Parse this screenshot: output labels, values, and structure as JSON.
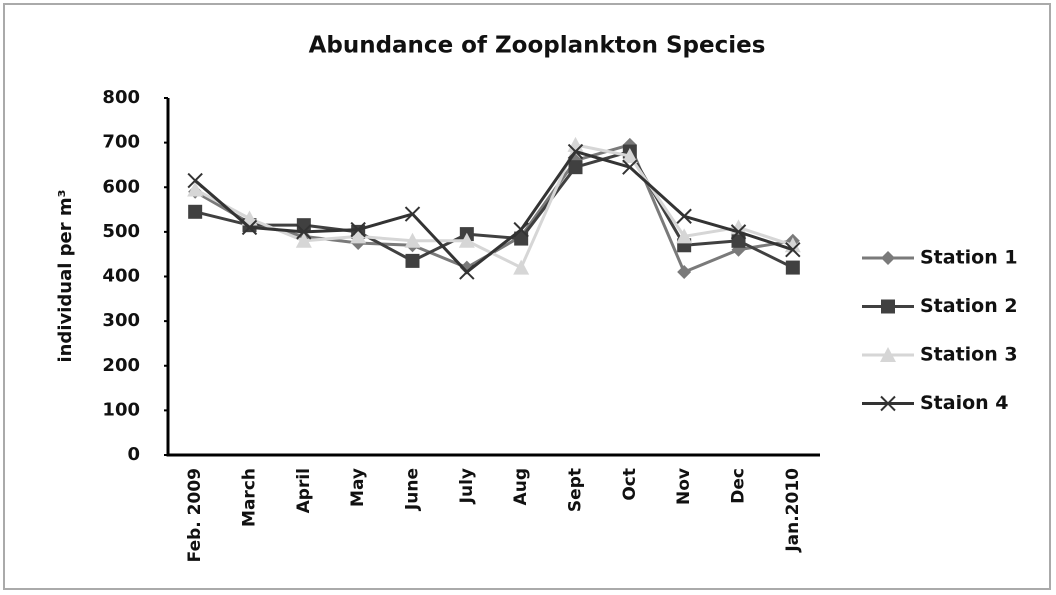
{
  "chart_data": {
    "type": "line",
    "title": "Abundance of Zooplankton Species",
    "ylabel": "individual per m³",
    "categories": [
      "Feb. 2009",
      "March",
      "April",
      "May",
      "June",
      "July",
      "Aug",
      "Sept",
      "Oct",
      "Nov",
      "Dec",
      "Jan.2010"
    ],
    "series": [
      {
        "name": "Station 1",
        "color": "#7a7a7a",
        "marker": "diamond",
        "values": [
          590,
          520,
          490,
          475,
          470,
          420,
          490,
          660,
          695,
          410,
          460,
          480
        ]
      },
      {
        "name": "Station 2",
        "color": "#404040",
        "marker": "square",
        "values": [
          545,
          515,
          515,
          500,
          435,
          495,
          485,
          645,
          680,
          470,
          480,
          420
        ]
      },
      {
        "name": "Station 3",
        "color": "#d6d6d6",
        "marker": "triangle",
        "values": [
          595,
          530,
          480,
          490,
          480,
          480,
          420,
          695,
          670,
          490,
          510,
          470
        ]
      },
      {
        "name": "Staion 4",
        "color": "#333333",
        "marker": "x",
        "values": [
          615,
          510,
          500,
          505,
          540,
          410,
          505,
          680,
          645,
          535,
          500,
          460
        ]
      }
    ],
    "ylim": [
      0,
      800
    ],
    "yticks": [
      0,
      100,
      200,
      300,
      400,
      500,
      600,
      700,
      800
    ],
    "grid": false,
    "legend": "right"
  }
}
